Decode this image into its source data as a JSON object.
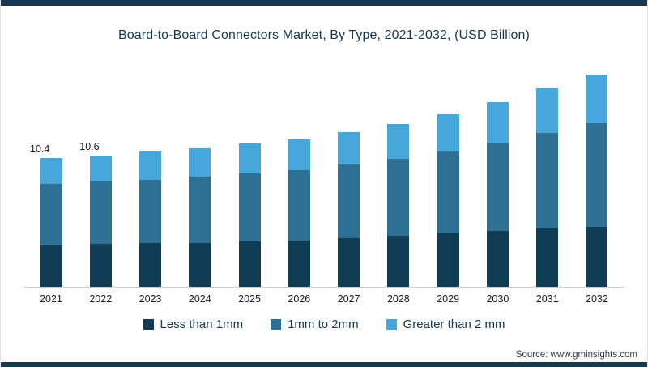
{
  "page": {
    "title": "Board-to-Board Connectors Market, By Type, 2021-2032, (USD Billion)",
    "source_label": "Source: www.gminsights.com"
  },
  "chart_data": {
    "type": "bar",
    "stacked": true,
    "title": "Board-to-Board Connectors Market, By Type, 2021-2032, (USD Billion)",
    "xlabel": "",
    "ylabel": "USD Billion",
    "ylim": [
      0,
      18
    ],
    "grid": false,
    "legend_position": "bottom",
    "categories": [
      "2021",
      "2022",
      "2023",
      "2024",
      "2025",
      "2026",
      "2027",
      "2028",
      "2029",
      "2030",
      "2031",
      "2032"
    ],
    "series": [
      {
        "name": "Less than 1mm",
        "color": "#113c55",
        "values": [
          3.4,
          3.5,
          3.55,
          3.6,
          3.7,
          3.8,
          3.95,
          4.15,
          4.35,
          4.55,
          4.75,
          4.9
        ]
      },
      {
        "name": "1mm to 2mm",
        "color": "#2e7093",
        "values": [
          4.9,
          5.0,
          5.1,
          5.3,
          5.45,
          5.6,
          5.9,
          6.2,
          6.55,
          7.05,
          7.65,
          8.3
        ]
      },
      {
        "name": "Greater than 2 mm",
        "color": "#47a6dc",
        "values": [
          2.1,
          2.1,
          2.25,
          2.3,
          2.4,
          2.5,
          2.65,
          2.8,
          3.0,
          3.3,
          3.6,
          3.9
        ]
      }
    ],
    "totals": [
      10.4,
      10.6,
      10.9,
      11.2,
      11.55,
      11.9,
      12.5,
      13.15,
      13.9,
      14.9,
      16.0,
      17.1
    ],
    "data_labels": [
      "10.4",
      "10.6",
      "",
      "",
      "",
      "",
      "",
      "",
      "",
      "",
      "",
      ""
    ]
  }
}
